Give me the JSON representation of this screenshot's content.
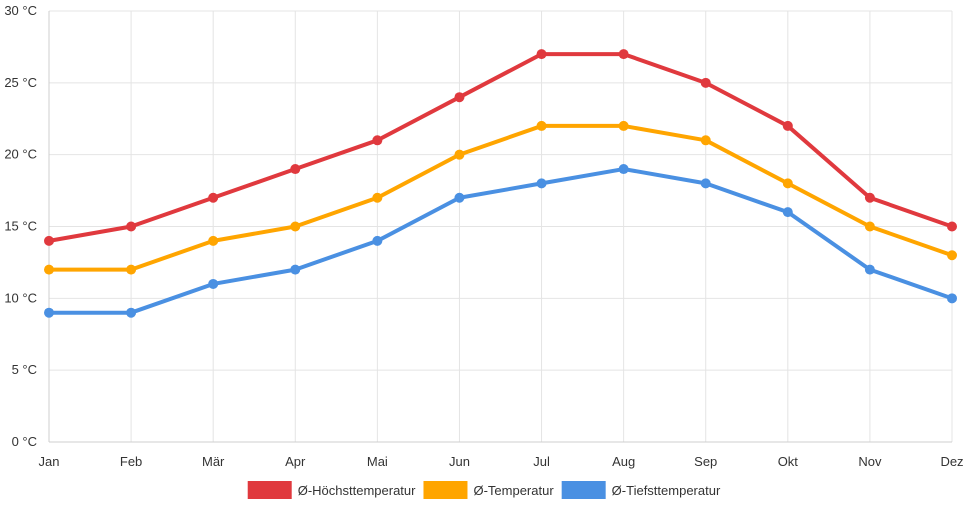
{
  "chart_data": {
    "type": "line",
    "title": "",
    "xlabel": "",
    "ylabel": "",
    "categories": [
      "Jan",
      "Feb",
      "Mär",
      "Apr",
      "Mai",
      "Jun",
      "Jul",
      "Aug",
      "Sep",
      "Okt",
      "Nov",
      "Dez"
    ],
    "ylim": [
      0,
      30
    ],
    "yticks": [
      0,
      5,
      10,
      15,
      20,
      25,
      30
    ],
    "ytick_labels": [
      "0 °C",
      "5 °C",
      "10 °C",
      "15 °C",
      "20 °C",
      "25 °C",
      "30 °C"
    ],
    "grid": true,
    "legend_position": "bottom",
    "series": [
      {
        "name": "Ø-Höchsttemperatur",
        "color": "#e0393e",
        "values": [
          14,
          15,
          17,
          19,
          21,
          24,
          27,
          27,
          25,
          22,
          17,
          15
        ]
      },
      {
        "name": "Ø-Temperatur",
        "color": "#ffa500",
        "values": [
          12,
          12,
          14,
          15,
          17,
          20,
          22,
          22,
          21,
          18,
          15,
          13
        ]
      },
      {
        "name": "Ø-Tiefsttemperatur",
        "color": "#4a90e2",
        "values": [
          9,
          9,
          11,
          12,
          14,
          17,
          18,
          19,
          18,
          16,
          12,
          10
        ]
      }
    ]
  }
}
